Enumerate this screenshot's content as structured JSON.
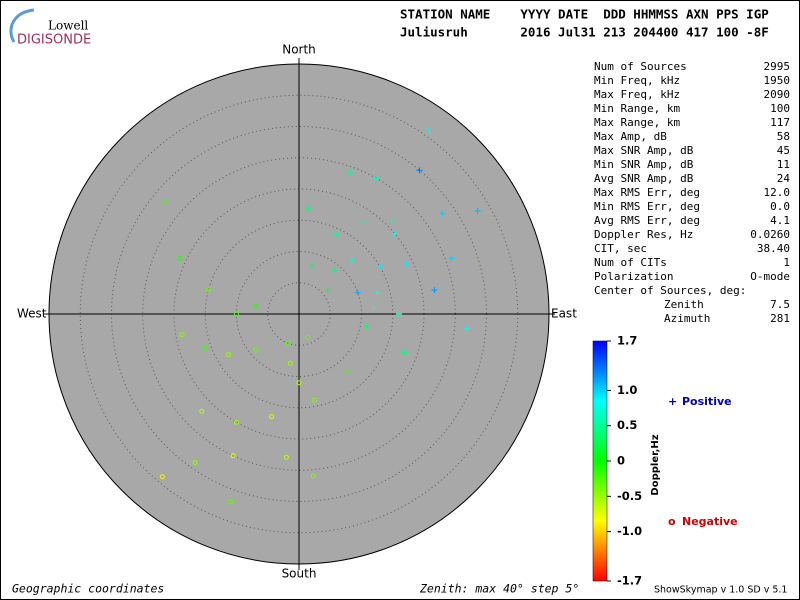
{
  "header": {
    "logo_top": "Lowell",
    "logo_bottom": "DIGISONDE",
    "columns": "STATION NAME    YYYY DATE  DDD HHMMSS AXN PPS IGP",
    "values": "Juliusruh       2016 Jul31 213 204400 417 100 -8F"
  },
  "stats": [
    [
      "Num of Sources",
      "2995"
    ],
    [
      "Min Freq, kHz",
      "1950"
    ],
    [
      "Max Freq, kHz",
      "2090"
    ],
    [
      "Min Range, km",
      "100"
    ],
    [
      "Max Range, km",
      "117"
    ],
    [
      "Max Amp, dB",
      "58"
    ],
    [
      "Max SNR Amp, dB",
      "45"
    ],
    [
      "Min SNR Amp, dB",
      "11"
    ],
    [
      "Avg SNR Amp, dB",
      "24"
    ],
    [
      "Max RMS Err, deg",
      "12.0"
    ],
    [
      "Min RMS Err, deg",
      "0.0"
    ],
    [
      "Avg RMS Err, deg",
      "4.1"
    ],
    [
      "Doppler Res, Hz",
      "0.0260"
    ],
    [
      "CIT, sec",
      "38.40"
    ],
    [
      "Num of CITs",
      "1"
    ],
    [
      "Polarization",
      "O-mode"
    ]
  ],
  "center": {
    "title": "Center of Sources, deg:",
    "rows": [
      [
        "Zenith",
        "7.5"
      ],
      [
        "Azimuth",
        "281"
      ]
    ]
  },
  "footer": {
    "left": "Geographic coordinates",
    "middle": "Zenith: max 40°  step 5°",
    "right": "ShowSkymap v 1.0  SD v 5.1"
  },
  "chart_data": {
    "type": "polar-scatter",
    "directions": {
      "north": "North",
      "east": "East",
      "south": "South",
      "west": "West"
    },
    "rlim": [
      0,
      40
    ],
    "rticks": [
      5,
      10,
      15,
      20,
      25,
      30,
      35
    ],
    "series": [
      {
        "name": "Positive",
        "marker": "+",
        "color": "#0000c0"
      },
      {
        "name": "Negative",
        "marker": "o",
        "color": "#d00000"
      }
    ],
    "points": {
      "zenith": [
        12,
        15,
        18,
        10,
        20,
        22,
        14,
        9,
        25,
        28,
        16,
        19,
        30,
        24,
        11,
        13,
        33,
        8,
        21,
        17,
        26,
        36,
        6,
        12,
        18,
        27,
        5,
        8,
        11,
        14,
        17,
        20,
        23,
        26,
        9,
        13,
        16,
        19,
        22,
        25,
        29,
        32,
        7,
        10,
        15,
        21,
        28,
        34,
        4,
        12
      ],
      "azimuth": [
        45,
        60,
        35,
        70,
        50,
        80,
        25,
        40,
        30,
        55,
        90,
        65,
        40,
        20,
        100,
        75,
        60,
        15,
        45,
        5,
        70,
        35,
        50,
        85,
        110,
        95,
        200,
        190,
        180,
        170,
        195,
        210,
        185,
        175,
        230,
        240,
        250,
        260,
        225,
        205,
        215,
        200,
        280,
        270,
        285,
        295,
        310,
        220,
        160,
        140
      ],
      "doppler": [
        0.7,
        0.9,
        0.6,
        1.1,
        0.8,
        1.2,
        0.5,
        0.4,
        0.7,
        1.0,
        0.6,
        0.9,
        1.3,
        0.5,
        0.3,
        0.8,
        1.1,
        0.3,
        0.6,
        0.4,
        1.0,
        0.9,
        0.2,
        0.7,
        0.4,
        0.8,
        -0.3,
        -0.5,
        -0.6,
        -0.4,
        -0.7,
        -0.5,
        -0.6,
        -0.4,
        -0.3,
        -0.5,
        -0.2,
        -0.4,
        -0.6,
        -0.8,
        -0.5,
        -0.3,
        -0.1,
        -0.2,
        -0.3,
        -0.1,
        -0.2,
        -0.9,
        -0.3,
        -0.2
      ]
    },
    "colorbar": {
      "label": "Doppler,Hz",
      "clim": [
        -1.7,
        1.7
      ],
      "ticks": [
        1.7,
        {
          "value": 1,
          "label": "1.0"
        },
        0.5,
        0,
        -0.5,
        {
          "value": -1,
          "label": "-1.0"
        },
        -1.7
      ]
    }
  }
}
